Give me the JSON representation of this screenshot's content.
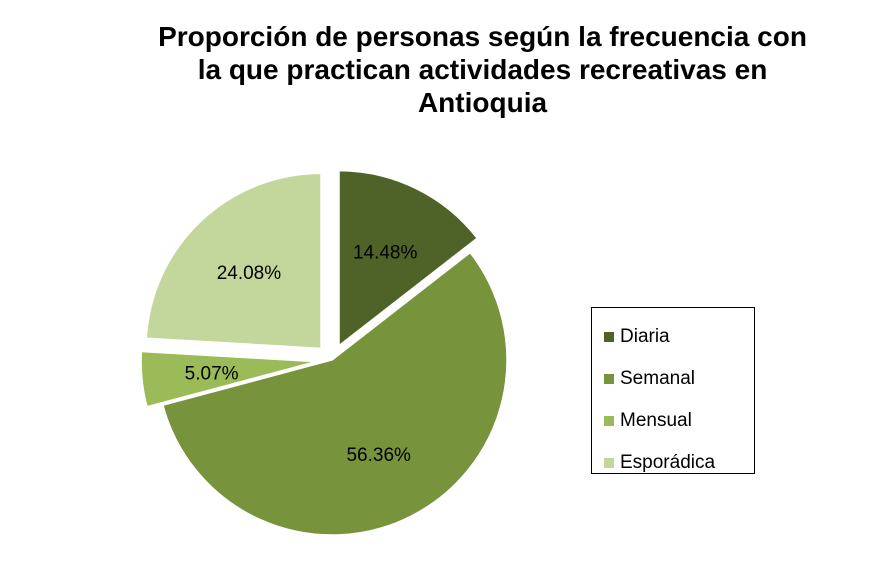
{
  "chart_data": {
    "type": "pie",
    "title_lines": [
      "Proporción de personas según la frecuencia con",
      "la que practican actividades recreativas en",
      "Antioquia"
    ],
    "slices": [
      {
        "label": "Diaria",
        "value": 14.48,
        "value_label": "14.48%",
        "color": "#4F6228",
        "exploded": true
      },
      {
        "label": "Semanal",
        "value": 56.36,
        "value_label": "56.36%",
        "color": "#77933C",
        "exploded": false
      },
      {
        "label": "Mensual",
        "value": 5.07,
        "value_label": "5.07%",
        "color": "#9BBB59",
        "exploded": true
      },
      {
        "label": "Esporádica",
        "value": 24.08,
        "value_label": "24.08%",
        "color": "#C3D69B",
        "exploded": true
      }
    ],
    "legend_position": "right"
  }
}
